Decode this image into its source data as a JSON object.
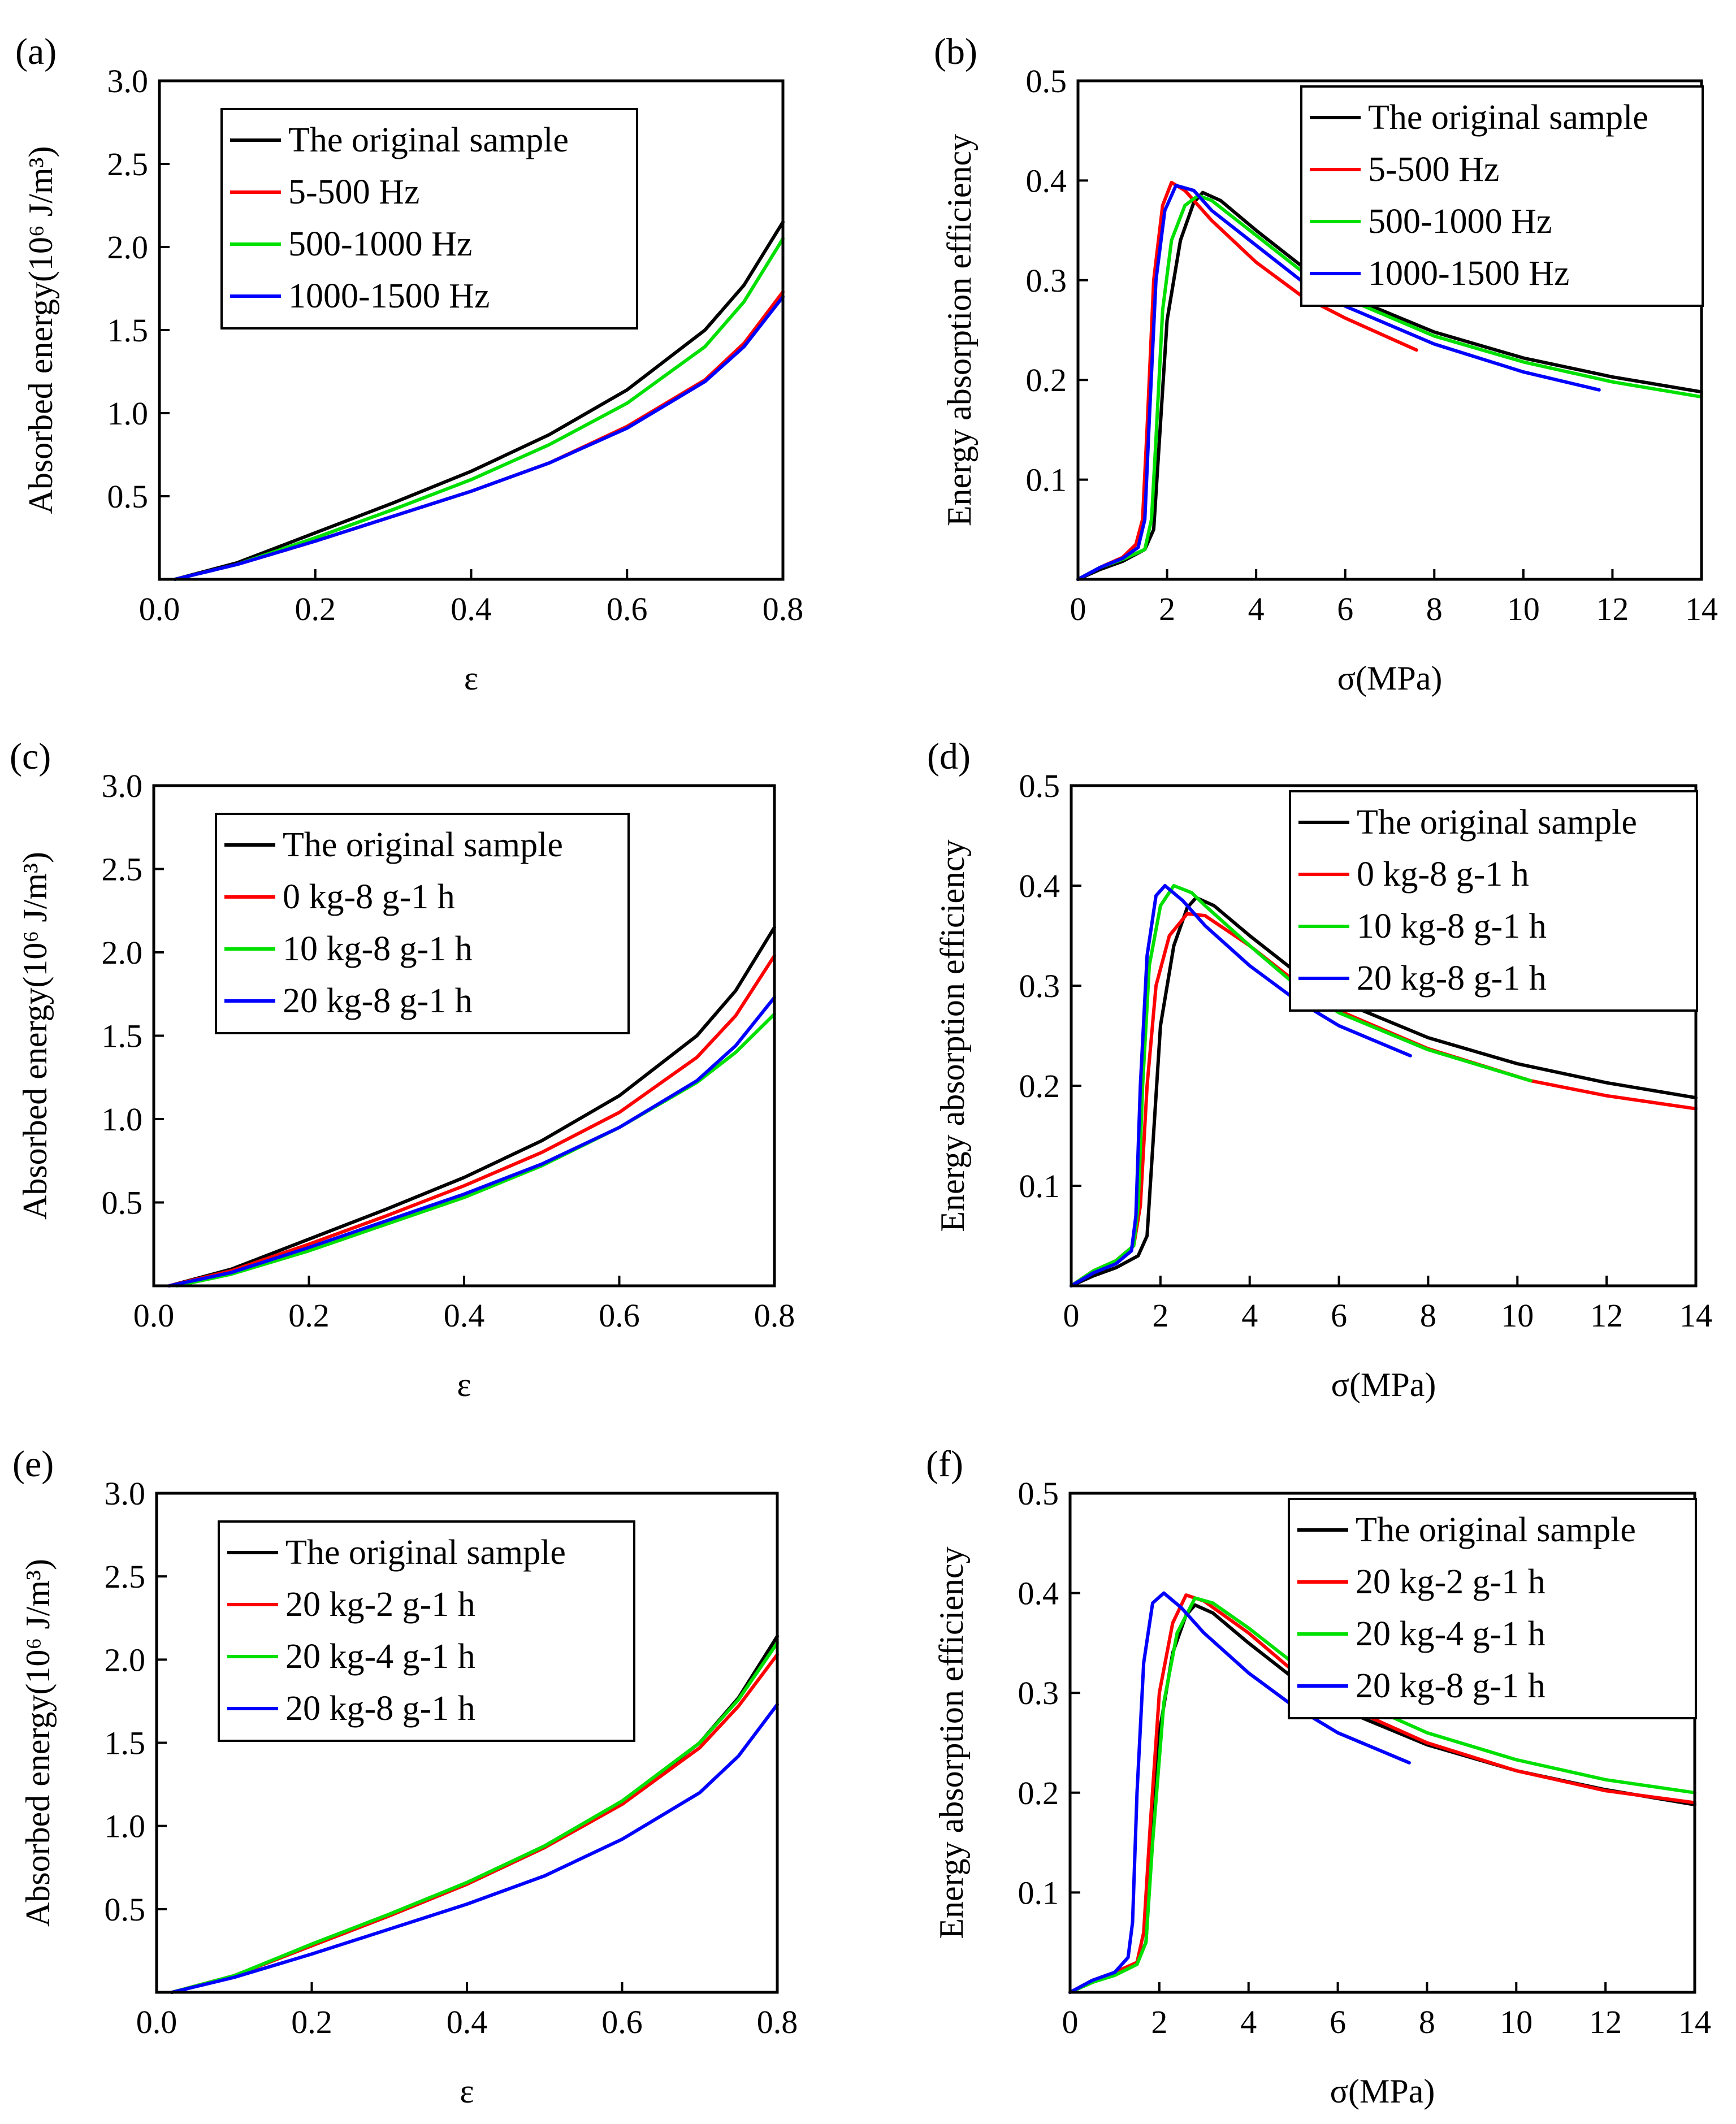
{
  "colors": {
    "black": "#000000",
    "red": "#ff0000",
    "green": "#00e000",
    "blue": "#0000ff"
  },
  "chart_data": [
    {
      "panel": "(a)",
      "type": "line",
      "xlabel": "ε",
      "ylabel": "Absorbed energy(10⁶ J/m³)",
      "xlim": [
        0,
        0.8
      ],
      "ylim": [
        0,
        3.0
      ],
      "xticks": [
        0.0,
        0.2,
        0.4,
        0.6,
        0.8
      ],
      "yticks": [
        0.5,
        1.0,
        1.5,
        2.0,
        2.5,
        3.0
      ],
      "legend_position": "top-left",
      "series": [
        {
          "name": "The original sample",
          "color": "#000000",
          "x": [
            0.02,
            0.1,
            0.2,
            0.3,
            0.4,
            0.5,
            0.6,
            0.7,
            0.75,
            0.8
          ],
          "y": [
            0,
            0.1,
            0.28,
            0.46,
            0.65,
            0.87,
            1.14,
            1.5,
            1.77,
            2.15
          ]
        },
        {
          "name": "5-500 Hz",
          "color": "#ff0000",
          "x": [
            0.02,
            0.1,
            0.2,
            0.3,
            0.4,
            0.5,
            0.6,
            0.7,
            0.75,
            0.8
          ],
          "y": [
            0,
            0.09,
            0.23,
            0.38,
            0.53,
            0.7,
            0.92,
            1.2,
            1.42,
            1.73
          ]
        },
        {
          "name": "500-1000 Hz",
          "color": "#00e000",
          "x": [
            0.02,
            0.1,
            0.2,
            0.3,
            0.4,
            0.5,
            0.6,
            0.7,
            0.75,
            0.8
          ],
          "y": [
            0,
            0.09,
            0.25,
            0.42,
            0.6,
            0.81,
            1.06,
            1.4,
            1.67,
            2.05
          ]
        },
        {
          "name": "1000-1500 Hz",
          "color": "#0000ff",
          "x": [
            0.02,
            0.1,
            0.2,
            0.3,
            0.4,
            0.5,
            0.6,
            0.7,
            0.75,
            0.8
          ],
          "y": [
            0,
            0.09,
            0.23,
            0.38,
            0.53,
            0.7,
            0.91,
            1.19,
            1.4,
            1.7
          ]
        }
      ]
    },
    {
      "panel": "(b)",
      "type": "line",
      "xlabel": "σ(MPa)",
      "ylabel": "Energy absorption efficiency",
      "xlim": [
        0,
        14
      ],
      "ylim": [
        0,
        0.5
      ],
      "xticks": [
        0,
        2,
        4,
        6,
        8,
        10,
        12,
        14
      ],
      "yticks": [
        0.1,
        0.2,
        0.3,
        0.4,
        0.5
      ],
      "legend_position": "top-right",
      "series": [
        {
          "name": "The original sample",
          "color": "#000000",
          "x": [
            0,
            0.5,
            1.0,
            1.5,
            1.7,
            1.8,
            2.0,
            2.3,
            2.6,
            2.8,
            3.2,
            4,
            5,
            6,
            8,
            10,
            12,
            14
          ],
          "y": [
            0,
            0.01,
            0.018,
            0.03,
            0.05,
            0.12,
            0.26,
            0.34,
            0.378,
            0.388,
            0.38,
            0.35,
            0.315,
            0.285,
            0.248,
            0.222,
            0.203,
            0.188
          ]
        },
        {
          "name": "5-500 Hz",
          "color": "#ff0000",
          "x": [
            0,
            0.5,
            1.0,
            1.3,
            1.45,
            1.55,
            1.7,
            1.9,
            2.1,
            2.4,
            3,
            4,
            5,
            6,
            7,
            7.6
          ],
          "y": [
            0,
            0.012,
            0.022,
            0.035,
            0.06,
            0.15,
            0.3,
            0.375,
            0.398,
            0.39,
            0.36,
            0.318,
            0.285,
            0.262,
            0.242,
            0.23
          ]
        },
        {
          "name": "500-1000 Hz",
          "color": "#00e000",
          "x": [
            0,
            0.5,
            1.0,
            1.5,
            1.65,
            1.75,
            1.9,
            2.1,
            2.4,
            2.7,
            3,
            4,
            5,
            6,
            8,
            10,
            12,
            14
          ],
          "y": [
            0,
            0.012,
            0.02,
            0.03,
            0.06,
            0.14,
            0.27,
            0.34,
            0.375,
            0.385,
            0.38,
            0.345,
            0.31,
            0.282,
            0.244,
            0.218,
            0.198,
            0.183
          ]
        },
        {
          "name": "1000-1500 Hz",
          "color": "#0000ff",
          "x": [
            0,
            0.5,
            1.0,
            1.35,
            1.5,
            1.6,
            1.75,
            1.95,
            2.2,
            2.6,
            3,
            4,
            5,
            6,
            8,
            10,
            11.7
          ],
          "y": [
            0,
            0.012,
            0.021,
            0.032,
            0.06,
            0.16,
            0.3,
            0.37,
            0.395,
            0.39,
            0.37,
            0.335,
            0.3,
            0.274,
            0.236,
            0.208,
            0.19
          ]
        }
      ]
    },
    {
      "panel": "(c)",
      "type": "line",
      "xlabel": "ε",
      "ylabel": "Absorbed energy(10⁶ J/m³)",
      "xlim": [
        0,
        0.8
      ],
      "ylim": [
        0,
        3.0
      ],
      "xticks": [
        0.0,
        0.2,
        0.4,
        0.6,
        0.8
      ],
      "yticks": [
        0.5,
        1.0,
        1.5,
        2.0,
        2.5,
        3.0
      ],
      "legend_position": "top-left",
      "series": [
        {
          "name": "The original sample",
          "color": "#000000",
          "x": [
            0.02,
            0.1,
            0.2,
            0.3,
            0.4,
            0.5,
            0.6,
            0.7,
            0.75,
            0.8
          ],
          "y": [
            0,
            0.1,
            0.28,
            0.46,
            0.65,
            0.87,
            1.14,
            1.5,
            1.77,
            2.15
          ]
        },
        {
          "name": "0 kg-8 g-1 h",
          "color": "#ff0000",
          "x": [
            0.02,
            0.1,
            0.2,
            0.3,
            0.4,
            0.5,
            0.6,
            0.7,
            0.75,
            0.8
          ],
          "y": [
            0,
            0.09,
            0.25,
            0.42,
            0.6,
            0.8,
            1.04,
            1.37,
            1.62,
            1.98
          ]
        },
        {
          "name": "10 kg-8 g-1 h",
          "color": "#00e000",
          "x": [
            0.03,
            0.1,
            0.2,
            0.3,
            0.4,
            0.5,
            0.6,
            0.7,
            0.75,
            0.8
          ],
          "y": [
            0,
            0.07,
            0.21,
            0.37,
            0.53,
            0.72,
            0.95,
            1.22,
            1.4,
            1.63
          ]
        },
        {
          "name": "20 kg-8 g-1 h",
          "color": "#0000ff",
          "x": [
            0.02,
            0.1,
            0.2,
            0.3,
            0.4,
            0.5,
            0.6,
            0.7,
            0.75,
            0.8
          ],
          "y": [
            0,
            0.08,
            0.23,
            0.39,
            0.55,
            0.73,
            0.95,
            1.23,
            1.44,
            1.73
          ]
        }
      ]
    },
    {
      "panel": "(d)",
      "type": "line",
      "xlabel": "σ(MPa)",
      "ylabel": "Energy absorption efficiency",
      "xlim": [
        0,
        14
      ],
      "ylim": [
        0,
        0.5
      ],
      "xticks": [
        0,
        2,
        4,
        6,
        8,
        10,
        12,
        14
      ],
      "yticks": [
        0.1,
        0.2,
        0.3,
        0.4,
        0.5
      ],
      "legend_position": "top-right",
      "series": [
        {
          "name": "The original sample",
          "color": "#000000",
          "x": [
            0,
            0.5,
            1.0,
            1.5,
            1.7,
            1.8,
            2.0,
            2.3,
            2.6,
            2.8,
            3.2,
            4,
            5,
            6,
            8,
            10,
            12,
            14
          ],
          "y": [
            0,
            0.01,
            0.018,
            0.03,
            0.05,
            0.12,
            0.26,
            0.34,
            0.378,
            0.388,
            0.38,
            0.35,
            0.315,
            0.285,
            0.248,
            0.222,
            0.203,
            0.188
          ]
        },
        {
          "name": "0 kg-8 g-1 h",
          "color": "#ff0000",
          "x": [
            0,
            0.5,
            1.0,
            1.4,
            1.55,
            1.7,
            1.9,
            2.2,
            2.6,
            3,
            4,
            5,
            6,
            8,
            10.3,
            12,
            14
          ],
          "y": [
            0,
            0.015,
            0.025,
            0.04,
            0.08,
            0.2,
            0.3,
            0.35,
            0.372,
            0.37,
            0.34,
            0.305,
            0.275,
            0.237,
            0.205,
            0.19,
            0.177
          ]
        },
        {
          "name": "10 kg-8 g-1 h",
          "color": "#00e000",
          "x": [
            0,
            0.5,
            1.0,
            1.4,
            1.5,
            1.6,
            1.75,
            2.0,
            2.3,
            2.7,
            3,
            4,
            5,
            6,
            8,
            10.3
          ],
          "y": [
            0,
            0.015,
            0.025,
            0.04,
            0.08,
            0.2,
            0.32,
            0.38,
            0.4,
            0.393,
            0.38,
            0.34,
            0.302,
            0.273,
            0.236,
            0.205
          ]
        },
        {
          "name": "20 kg-8 g-1 h",
          "color": "#0000ff",
          "x": [
            0,
            0.5,
            1.0,
            1.35,
            1.45,
            1.55,
            1.7,
            1.9,
            2.1,
            2.5,
            3,
            4,
            5,
            6,
            7.6
          ],
          "y": [
            0,
            0.013,
            0.022,
            0.035,
            0.07,
            0.2,
            0.33,
            0.39,
            0.4,
            0.385,
            0.36,
            0.32,
            0.287,
            0.26,
            0.23
          ]
        }
      ]
    },
    {
      "panel": "(e)",
      "type": "line",
      "xlabel": "ε",
      "ylabel": "Absorbed energy(10⁶ J/m³)",
      "xlim": [
        0,
        0.8
      ],
      "ylim": [
        0,
        3.0
      ],
      "xticks": [
        0.0,
        0.2,
        0.4,
        0.6,
        0.8
      ],
      "yticks": [
        0.5,
        1.0,
        1.5,
        2.0,
        2.5,
        3.0
      ],
      "legend_position": "top-left",
      "series": [
        {
          "name": "The original sample",
          "color": "#000000",
          "x": [
            0.02,
            0.1,
            0.2,
            0.3,
            0.4,
            0.5,
            0.6,
            0.7,
            0.75,
            0.8
          ],
          "y": [
            0,
            0.1,
            0.28,
            0.46,
            0.65,
            0.87,
            1.14,
            1.5,
            1.77,
            2.14
          ]
        },
        {
          "name": "20 kg-2 g-1 h",
          "color": "#ff0000",
          "x": [
            0.02,
            0.1,
            0.2,
            0.3,
            0.4,
            0.5,
            0.6,
            0.7,
            0.75,
            0.8
          ],
          "y": [
            0,
            0.1,
            0.28,
            0.46,
            0.65,
            0.87,
            1.13,
            1.47,
            1.72,
            2.03
          ]
        },
        {
          "name": "20 kg-4 g-1 h",
          "color": "#00e000",
          "x": [
            0.02,
            0.1,
            0.2,
            0.3,
            0.4,
            0.5,
            0.6,
            0.7,
            0.75,
            0.8
          ],
          "y": [
            0,
            0.1,
            0.29,
            0.47,
            0.66,
            0.88,
            1.15,
            1.5,
            1.76,
            2.1
          ]
        },
        {
          "name": "20 kg-8 g-1 h",
          "color": "#0000ff",
          "x": [
            0.02,
            0.1,
            0.2,
            0.3,
            0.4,
            0.5,
            0.6,
            0.7,
            0.75,
            0.8
          ],
          "y": [
            0,
            0.09,
            0.23,
            0.38,
            0.53,
            0.7,
            0.92,
            1.2,
            1.42,
            1.73
          ]
        }
      ]
    },
    {
      "panel": "(f)",
      "type": "line",
      "xlabel": "σ(MPa)",
      "ylabel": "Energy absorption efficiency",
      "xlim": [
        0,
        14
      ],
      "ylim": [
        0,
        0.5
      ],
      "xticks": [
        0,
        2,
        4,
        6,
        8,
        10,
        12,
        14
      ],
      "yticks": [
        0.1,
        0.2,
        0.3,
        0.4,
        0.5
      ],
      "legend_position": "top-right",
      "series": [
        {
          "name": "The original sample",
          "color": "#000000",
          "x": [
            0,
            0.5,
            1.0,
            1.5,
            1.7,
            1.8,
            2.0,
            2.3,
            2.6,
            2.8,
            3.2,
            4,
            5,
            6,
            8,
            10,
            12,
            14
          ],
          "y": [
            0,
            0.01,
            0.018,
            0.03,
            0.05,
            0.12,
            0.26,
            0.34,
            0.378,
            0.388,
            0.38,
            0.35,
            0.315,
            0.285,
            0.248,
            0.222,
            0.203,
            0.188
          ]
        },
        {
          "name": "20 kg-2 g-1 h",
          "color": "#ff0000",
          "x": [
            0,
            0.5,
            1.0,
            1.5,
            1.65,
            1.8,
            2.0,
            2.3,
            2.6,
            3,
            4,
            5,
            6,
            8,
            10,
            12,
            14
          ],
          "y": [
            0,
            0.012,
            0.02,
            0.03,
            0.06,
            0.17,
            0.3,
            0.37,
            0.398,
            0.392,
            0.36,
            0.322,
            0.29,
            0.25,
            0.222,
            0.202,
            0.19
          ]
        },
        {
          "name": "20 kg-4 g-1 h",
          "color": "#00e000",
          "x": [
            0,
            0.5,
            1.0,
            1.5,
            1.7,
            1.85,
            2.1,
            2.4,
            2.8,
            3.2,
            4,
            5,
            6,
            8,
            10,
            12,
            14
          ],
          "y": [
            0,
            0.01,
            0.017,
            0.028,
            0.05,
            0.15,
            0.29,
            0.36,
            0.395,
            0.39,
            0.365,
            0.33,
            0.3,
            0.26,
            0.233,
            0.213,
            0.2
          ]
        },
        {
          "name": "20 kg-8 g-1 h",
          "color": "#0000ff",
          "x": [
            0,
            0.5,
            1.0,
            1.3,
            1.4,
            1.5,
            1.65,
            1.85,
            2.1,
            2.5,
            3,
            4,
            5,
            6,
            7.6
          ],
          "y": [
            0,
            0.012,
            0.02,
            0.035,
            0.07,
            0.2,
            0.33,
            0.39,
            0.4,
            0.385,
            0.36,
            0.32,
            0.287,
            0.26,
            0.23
          ]
        }
      ]
    }
  ]
}
